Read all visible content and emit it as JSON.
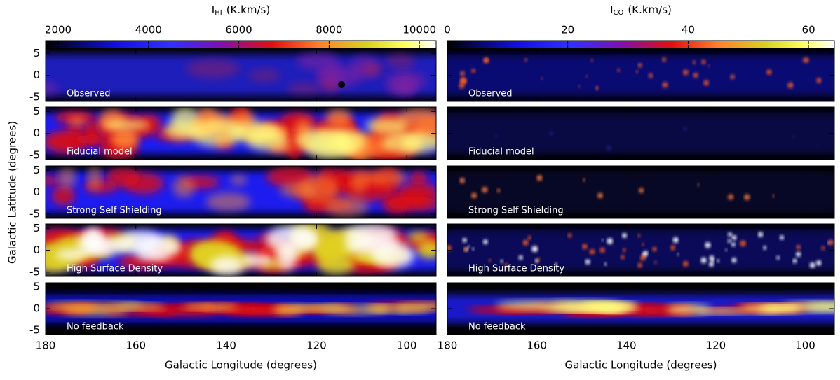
{
  "chart_data": [
    {
      "type": "map",
      "colorbar": {
        "symbol": "I",
        "subscript": "HI",
        "unit": "(K.km/s)",
        "clim": [
          1720,
          10370
        ],
        "ticks": [
          2000,
          4000,
          6000,
          8000,
          10000
        ]
      },
      "xlabel": "Galactic Longitude (degrees)",
      "xlim": [
        180,
        93.5
      ],
      "xticks": [
        180,
        160,
        140,
        120,
        100
      ],
      "ylabel": "Galactic Latitude (degrees)",
      "ylim": [
        -6,
        6
      ],
      "yticks": [
        -5,
        0,
        5
      ],
      "panels": [
        "Observed",
        "Fiducial model",
        "Strong Self Shielding",
        "High Surface Density",
        "No feedback"
      ]
    },
    {
      "type": "map",
      "colorbar": {
        "symbol": "I",
        "subscript": "CO",
        "unit": "(K.km/s)",
        "clim": [
          0,
          64.3
        ],
        "ticks": [
          0,
          20,
          40,
          60
        ]
      },
      "xlabel": "Galactic Longitude (degrees)",
      "xlim": [
        180,
        93.5
      ],
      "xticks": [
        180,
        160,
        140,
        120,
        100
      ],
      "ylim": [
        -6,
        6
      ],
      "yticks": [
        -5,
        0,
        5
      ],
      "panels": [
        "Observed",
        "Fiducial model",
        "Strong Self Shielding",
        "High Surface Density",
        "No feedback"
      ]
    }
  ]
}
